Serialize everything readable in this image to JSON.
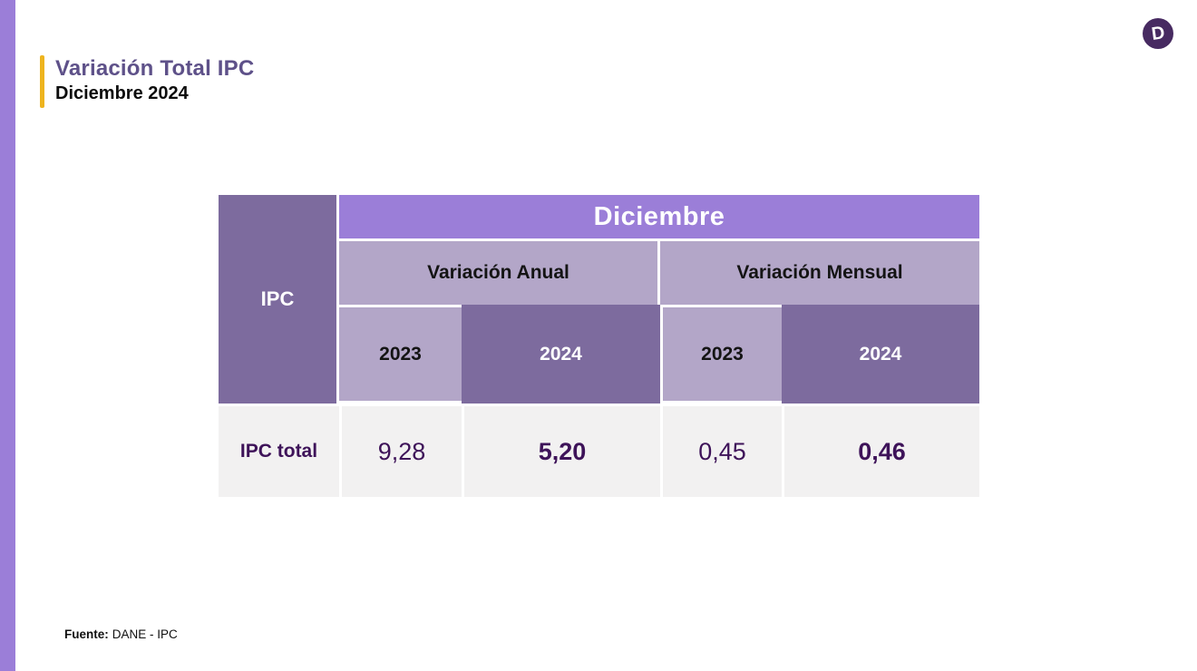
{
  "slide": {
    "title": "Variación Total IPC",
    "subtitle": "Diciembre 2024",
    "logo_letter": "D",
    "source_label": "Fuente:",
    "source_value": "DANE - IPC"
  },
  "table": {
    "corner_label": "IPC",
    "month_header": "Diciembre",
    "group_headers": [
      "Variación Anual",
      "Variación Mensual"
    ],
    "year_headers": [
      "2023",
      "2024",
      "2023",
      "2024"
    ],
    "rows": [
      {
        "label": "IPC total",
        "values": [
          "9,28",
          "5,20",
          "0,45",
          "0,46"
        ]
      }
    ]
  },
  "colors": {
    "accent_purple_bright": "#9b7ed8",
    "accent_purple_mid": "#7d6b9e",
    "accent_purple_light": "#b3a6c8",
    "data_row_gray": "#f2f1f1",
    "value_text_purple": "#3e1359",
    "title_purple": "#5e5189",
    "accent_yellow": "#eeb41f",
    "logo_purple": "#472a61"
  }
}
